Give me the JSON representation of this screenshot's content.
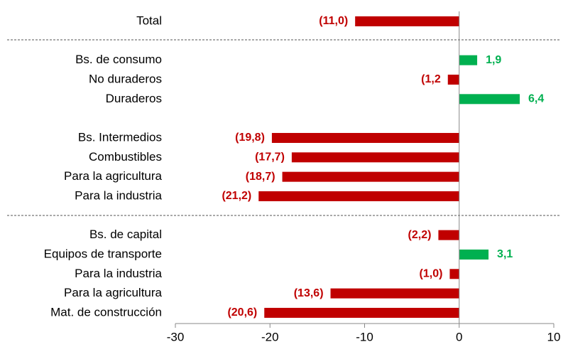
{
  "chart_data": {
    "type": "hbar",
    "categories": [
      "Total",
      null,
      "Bs. de consumo",
      "No duraderos",
      "Duraderos",
      null,
      "Bs. Intermedios",
      "Combustibles",
      "Para la agricultura",
      "Para la industria",
      null,
      "Bs. de capital",
      "Equipos de transporte",
      "Para la industria",
      "Para la agricultura",
      "Mat. de construcción"
    ],
    "values": [
      -11.0,
      null,
      1.9,
      -1.2,
      6.4,
      null,
      -19.8,
      -17.7,
      -18.7,
      -21.2,
      null,
      -2.2,
      3.1,
      -1.0,
      -13.6,
      -20.6
    ],
    "value_labels": [
      "(11,0)",
      null,
      "1,9",
      "(1,2",
      "6,4",
      null,
      "(19,8)",
      "(17,7)",
      "(18,7)",
      "(21,2)",
      null,
      "(2,2)",
      "3,1",
      "(1,0)",
      "(13,6)",
      "(20,6)"
    ],
    "negative_color": "#c00000",
    "positive_color": "#00b050",
    "xlim": [
      -30,
      10
    ],
    "xticks": [
      -30,
      -20,
      -10,
      0,
      10
    ]
  }
}
